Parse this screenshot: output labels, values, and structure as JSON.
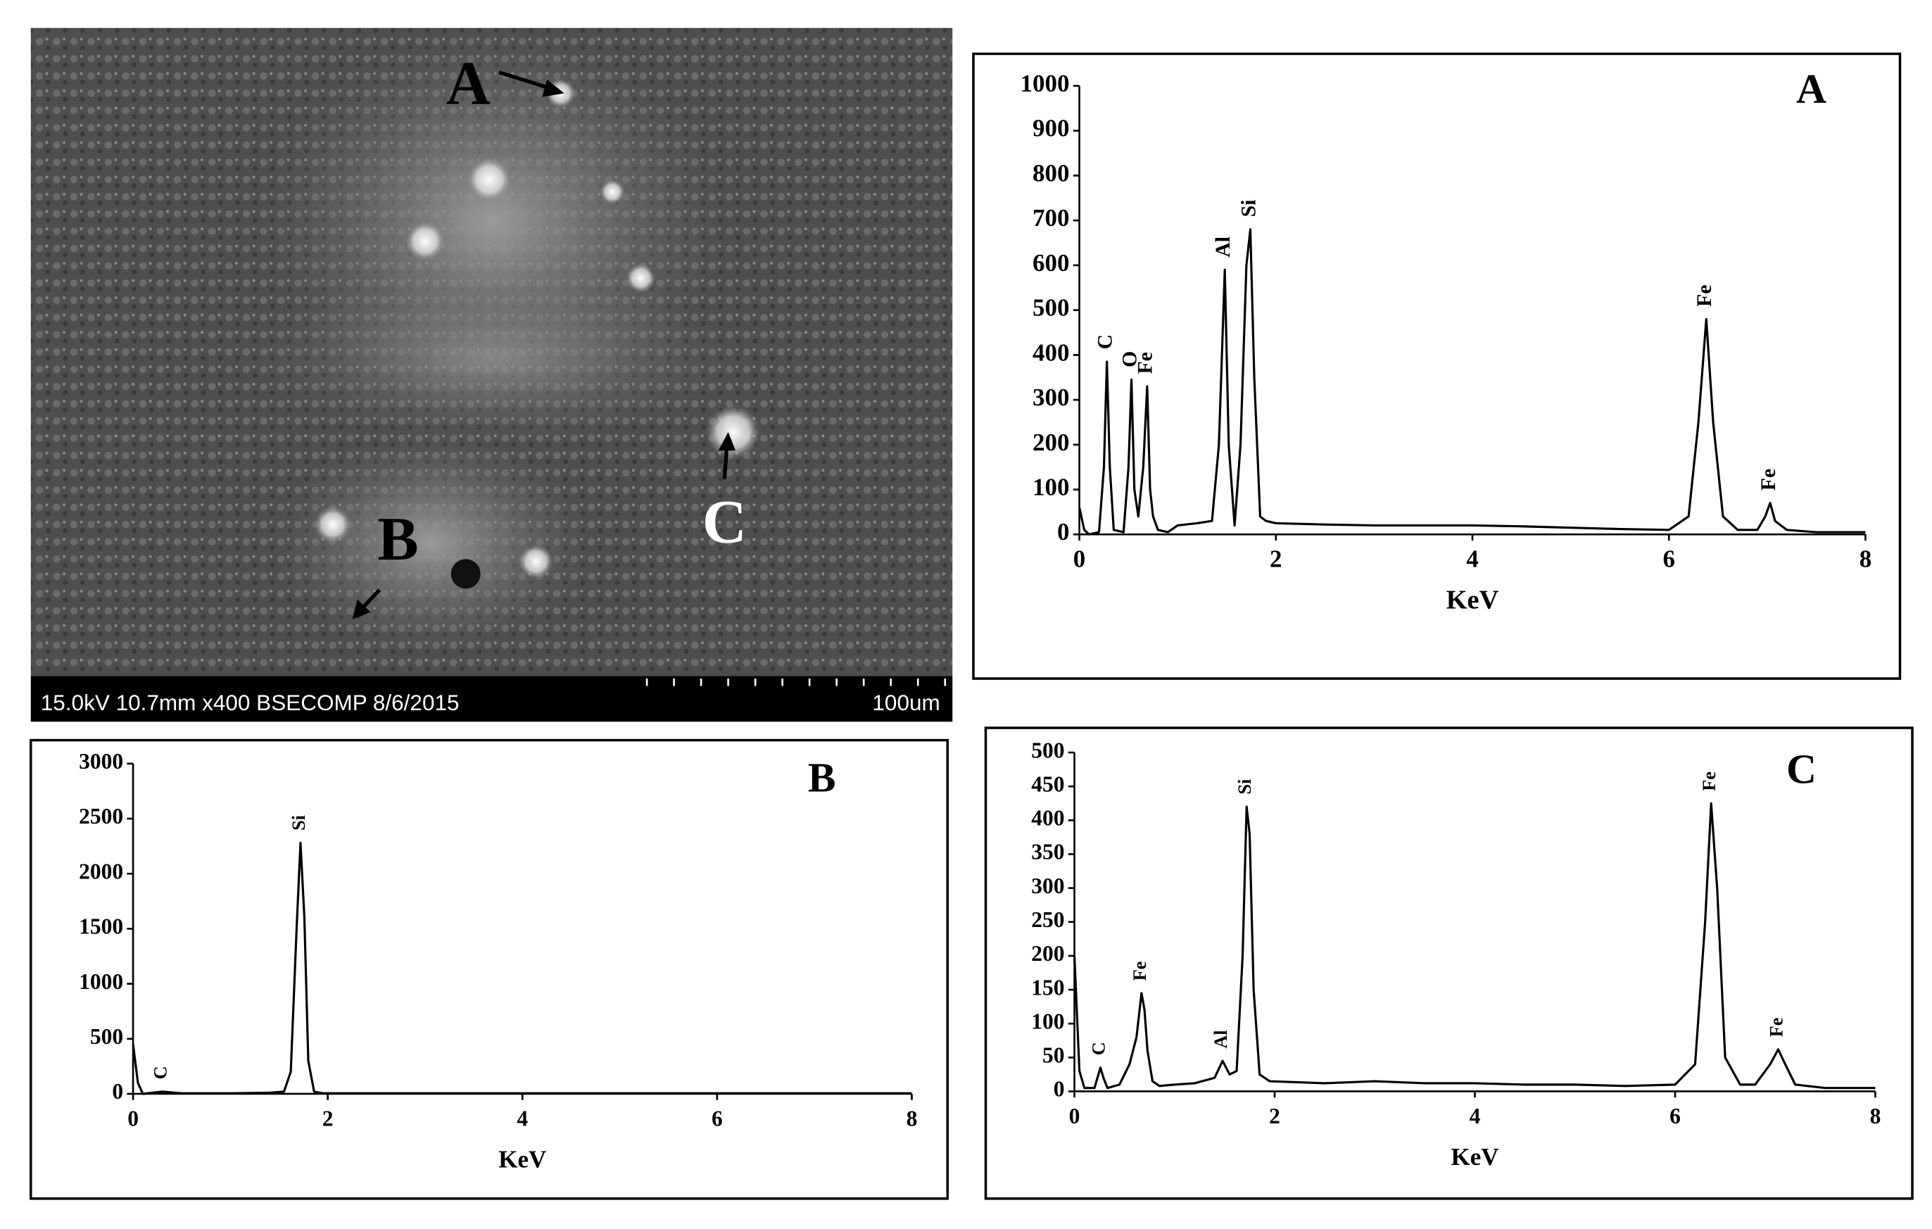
{
  "micrograph": {
    "labels": [
      "A",
      "B",
      "C"
    ],
    "info": "15.0kV 10.7mm x400 BSECOMP 8/6/2015",
    "scale": "100um"
  },
  "chart_data": [
    {
      "type": "line",
      "panel": "A",
      "xlabel": "KeV",
      "color": "#000000",
      "x": [
        0,
        0.05,
        0.1,
        0.2,
        0.25,
        0.28,
        0.31,
        0.35,
        0.45,
        0.5,
        0.53,
        0.56,
        0.6,
        0.65,
        0.69,
        0.72,
        0.75,
        0.8,
        0.9,
        1.0,
        1.2,
        1.35,
        1.42,
        1.48,
        1.52,
        1.58,
        1.64,
        1.7,
        1.74,
        1.78,
        1.84,
        1.9,
        2.0,
        2.5,
        3.0,
        3.5,
        4.0,
        4.5,
        5.0,
        5.5,
        6.0,
        6.2,
        6.3,
        6.38,
        6.45,
        6.55,
        6.7,
        6.9,
        6.98,
        7.03,
        7.08,
        7.2,
        7.5,
        8.0
      ],
      "values": [
        60,
        10,
        0,
        5,
        150,
        385,
        150,
        10,
        5,
        150,
        345,
        100,
        40,
        150,
        330,
        100,
        40,
        10,
        5,
        20,
        25,
        30,
        200,
        590,
        200,
        20,
        200,
        600,
        680,
        350,
        40,
        30,
        25,
        22,
        20,
        20,
        20,
        18,
        15,
        12,
        10,
        40,
        250,
        480,
        250,
        40,
        10,
        10,
        40,
        70,
        30,
        10,
        5,
        5
      ],
      "annotations": [
        {
          "text": "C",
          "x": 0.28
        },
        {
          "text": "O",
          "x": 0.53
        },
        {
          "text": "Fe",
          "x": 0.69
        },
        {
          "text": "Al",
          "x": 1.48
        },
        {
          "text": "Si",
          "x": 1.74
        },
        {
          "text": "Fe",
          "x": 6.38
        },
        {
          "text": "Fe",
          "x": 7.03
        }
      ],
      "xlim": [
        0,
        8
      ],
      "xticks": [
        0,
        2,
        4,
        6,
        8
      ],
      "ylim": [
        0,
        1000
      ],
      "yticks": [
        0,
        100,
        200,
        300,
        400,
        500,
        600,
        700,
        800,
        900,
        1000
      ]
    },
    {
      "type": "line",
      "panel": "B",
      "xlabel": "KeV",
      "color": "#000000",
      "x": [
        0,
        0.05,
        0.1,
        0.3,
        0.5,
        1.0,
        1.4,
        1.55,
        1.62,
        1.68,
        1.72,
        1.76,
        1.8,
        1.86,
        1.95,
        2.5,
        4,
        6,
        8
      ],
      "values": [
        450,
        100,
        0,
        20,
        5,
        5,
        10,
        20,
        200,
        1500,
        2280,
        1600,
        300,
        20,
        5,
        5,
        5,
        5,
        5
      ],
      "annotations": [
        {
          "text": "C",
          "x": 0.3
        },
        {
          "text": "Si",
          "x": 1.72
        }
      ],
      "xlim": [
        0,
        8
      ],
      "xticks": [
        0,
        2,
        4,
        6,
        8
      ],
      "ylim": [
        0,
        3000
      ],
      "yticks": [
        0,
        500,
        1000,
        1500,
        2000,
        2500,
        3000
      ]
    },
    {
      "type": "line",
      "panel": "C",
      "xlabel": "KeV",
      "color": "#000000",
      "x": [
        0,
        0.05,
        0.1,
        0.2,
        0.26,
        0.29,
        0.33,
        0.45,
        0.55,
        0.62,
        0.67,
        0.7,
        0.73,
        0.78,
        0.85,
        1.0,
        1.2,
        1.4,
        1.48,
        1.55,
        1.62,
        1.68,
        1.72,
        1.75,
        1.79,
        1.85,
        1.95,
        2.5,
        3,
        3.5,
        4,
        4.5,
        5,
        5.5,
        6,
        6.2,
        6.3,
        6.36,
        6.42,
        6.5,
        6.65,
        6.8,
        6.95,
        7.03,
        7.1,
        7.2,
        7.5,
        8
      ],
      "values": [
        200,
        30,
        5,
        5,
        35,
        20,
        5,
        10,
        40,
        80,
        145,
        120,
        60,
        15,
        8,
        10,
        12,
        20,
        45,
        25,
        30,
        200,
        420,
        380,
        150,
        25,
        15,
        12,
        15,
        12,
        12,
        10,
        10,
        8,
        10,
        40,
        250,
        425,
        300,
        50,
        10,
        10,
        40,
        62,
        40,
        10,
        5,
        5
      ],
      "annotations": [
        {
          "text": "C",
          "x": 0.26
        },
        {
          "text": "Fe",
          "x": 0.67
        },
        {
          "text": "Al",
          "x": 1.48
        },
        {
          "text": "Si",
          "x": 1.72
        },
        {
          "text": "Fe",
          "x": 6.36
        },
        {
          "text": "Fe",
          "x": 7.03
        }
      ],
      "xlim": [
        0,
        8
      ],
      "xticks": [
        0,
        2,
        4,
        6,
        8
      ],
      "ylim": [
        0,
        500
      ],
      "yticks": [
        0,
        50,
        100,
        150,
        200,
        250,
        300,
        350,
        400,
        450,
        500
      ]
    }
  ]
}
